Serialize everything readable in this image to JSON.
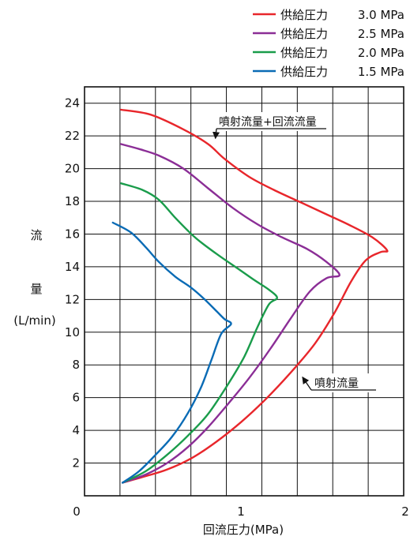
{
  "chart_data": {
    "type": "line",
    "title": "",
    "xlabel": "回流圧力(MPa)",
    "ylabel_parts": [
      "流",
      "量",
      "(L/min)"
    ],
    "xlim": [
      0,
      2
    ],
    "ylim": [
      0,
      25
    ],
    "x_ticks": [
      0,
      1,
      2
    ],
    "y_ticks": [
      2,
      4,
      6,
      8,
      10,
      12,
      14,
      16,
      18,
      20,
      22,
      24
    ],
    "grid": true,
    "legend_position": "top-right",
    "series": [
      {
        "name": "供給圧力",
        "pressure": "3.0 MPa",
        "color": "#e8262b",
        "points": [
          [
            0.28,
            0.8
          ],
          [
            0.42,
            1.2
          ],
          [
            0.55,
            1.6
          ],
          [
            0.7,
            2.3
          ],
          [
            0.85,
            3.3
          ],
          [
            1.0,
            4.5
          ],
          [
            1.15,
            5.9
          ],
          [
            1.3,
            7.5
          ],
          [
            1.45,
            9.3
          ],
          [
            1.57,
            11.2
          ],
          [
            1.67,
            13.1
          ],
          [
            1.76,
            14.4
          ],
          [
            1.85,
            14.9
          ],
          [
            1.89,
            15.0
          ],
          [
            1.8,
            15.8
          ],
          [
            1.65,
            16.6
          ],
          [
            1.5,
            17.3
          ],
          [
            1.35,
            18.0
          ],
          [
            1.2,
            18.7
          ],
          [
            1.05,
            19.5
          ],
          [
            0.9,
            20.6
          ],
          [
            0.8,
            21.5
          ],
          [
            0.65,
            22.4
          ],
          [
            0.45,
            23.3
          ],
          [
            0.27,
            23.6
          ]
        ]
      },
      {
        "name": "供給圧力",
        "pressure": "2.5 MPa",
        "color": "#8b2e96",
        "points": [
          [
            0.28,
            0.8
          ],
          [
            0.42,
            1.3
          ],
          [
            0.55,
            2.0
          ],
          [
            0.68,
            3.0
          ],
          [
            0.8,
            4.2
          ],
          [
            0.92,
            5.6
          ],
          [
            1.05,
            7.2
          ],
          [
            1.18,
            9.0
          ],
          [
            1.3,
            10.8
          ],
          [
            1.42,
            12.5
          ],
          [
            1.52,
            13.3
          ],
          [
            1.6,
            13.5
          ],
          [
            1.52,
            14.3
          ],
          [
            1.4,
            15.1
          ],
          [
            1.25,
            15.8
          ],
          [
            1.1,
            16.6
          ],
          [
            0.95,
            17.6
          ],
          [
            0.8,
            18.8
          ],
          [
            0.65,
            20.0
          ],
          [
            0.5,
            20.8
          ],
          [
            0.38,
            21.2
          ],
          [
            0.27,
            21.5
          ]
        ]
      },
      {
        "name": "供給圧力",
        "pressure": "2.0 MPa",
        "color": "#1a9c4b",
        "points": [
          [
            0.28,
            0.8
          ],
          [
            0.42,
            1.5
          ],
          [
            0.55,
            2.5
          ],
          [
            0.68,
            3.7
          ],
          [
            0.8,
            5.0
          ],
          [
            0.92,
            6.8
          ],
          [
            1.02,
            8.5
          ],
          [
            1.1,
            10.3
          ],
          [
            1.17,
            11.7
          ],
          [
            1.22,
            12.1
          ],
          [
            1.17,
            12.6
          ],
          [
            1.08,
            13.2
          ],
          [
            0.98,
            13.9
          ],
          [
            0.85,
            14.8
          ],
          [
            0.72,
            15.8
          ],
          [
            0.6,
            17.0
          ],
          [
            0.5,
            18.1
          ],
          [
            0.4,
            18.7
          ],
          [
            0.27,
            19.1
          ]
        ]
      },
      {
        "name": "供給圧力",
        "pressure": "1.5 MPa",
        "color": "#0a6bb5",
        "points": [
          [
            0.28,
            0.8
          ],
          [
            0.38,
            1.5
          ],
          [
            0.48,
            2.5
          ],
          [
            0.58,
            3.6
          ],
          [
            0.68,
            5.1
          ],
          [
            0.76,
            6.7
          ],
          [
            0.82,
            8.3
          ],
          [
            0.88,
            9.9
          ],
          [
            0.94,
            10.5
          ],
          [
            0.9,
            10.8
          ],
          [
            0.85,
            11.3
          ],
          [
            0.78,
            12.0
          ],
          [
            0.7,
            12.7
          ],
          [
            0.6,
            13.4
          ],
          [
            0.5,
            14.3
          ],
          [
            0.42,
            15.2
          ],
          [
            0.33,
            16.1
          ],
          [
            0.22,
            16.7
          ]
        ]
      }
    ],
    "annotations": [
      {
        "text": "噴射流量+回流流量",
        "target": [
          0.83,
          21.7
        ]
      },
      {
        "text": "噴射流量",
        "target": [
          1.36,
          7.4
        ]
      }
    ]
  }
}
